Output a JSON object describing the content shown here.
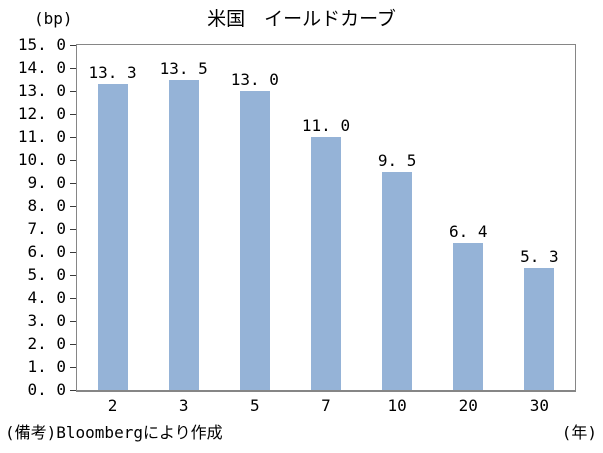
{
  "chart_data": {
    "type": "bar",
    "title": "米国　イールドカーブ",
    "y_unit_label": "(bp)",
    "x_unit_label": "(年)",
    "note": "(備考)Bloombergにより作成",
    "categories": [
      "2",
      "3",
      "5",
      "7",
      "10",
      "20",
      "30"
    ],
    "values": [
      13.3,
      13.5,
      13.0,
      11.0,
      9.5,
      6.4,
      5.3
    ],
    "ylim": [
      0,
      15
    ],
    "ytick_step": 1.0,
    "ytick_decimals": 1,
    "bar_value_decimals": 1,
    "grid": false,
    "legend": false,
    "bar_color": "#95B3D7",
    "axis_color": "#868686",
    "text_color": "#000000"
  }
}
